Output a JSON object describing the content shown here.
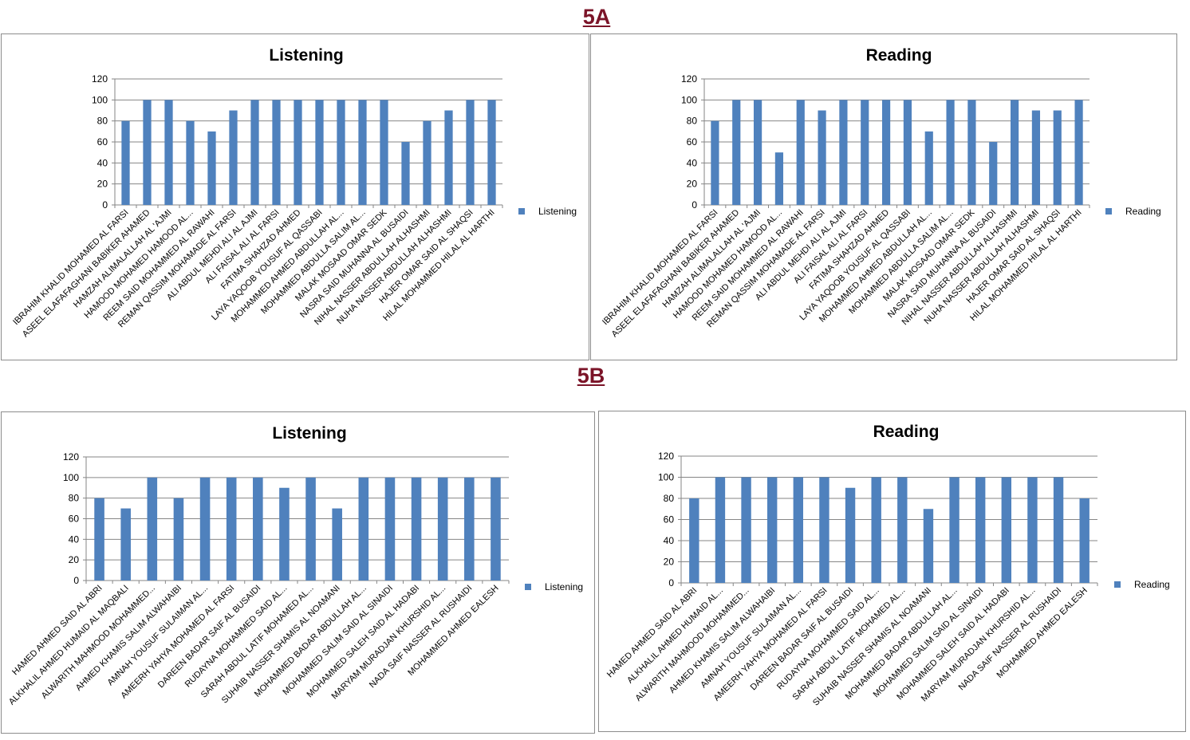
{
  "sections": [
    {
      "title": "5A"
    },
    {
      "title": "5B"
    }
  ],
  "colors": {
    "bar": "#4f81bd",
    "grid": "#868686",
    "section_title": "#7b1428"
  },
  "chart_data": [
    {
      "type": "bar",
      "title": "Listening",
      "section": "5A",
      "legend": "right",
      "grid": true,
      "ylim": [
        0,
        120
      ],
      "yticks": [
        0,
        20,
        40,
        60,
        80,
        100,
        120
      ],
      "categories": [
        "IBRAHIM KHALID MOHAMED AL FARSI",
        "ASEEL ELAFAFAGHANI BABIKER AHAMED",
        "HAMZAH ALIMALALLAH AL 'AJMI",
        "HAMOOD MOHAMED HAMOOD AL...",
        "REEM SAID MOHAMMED AL RAWAHI",
        "REMAN QASSIM MOHAMADE AL FARSI",
        "ALI ABDUL MEHDI ALI AL AJMI",
        "ALI FAISAL ALI AL FARSI",
        "FATIMA SHAHZAD AHMED",
        "LAYA YAQOOB YOUSUF AL QASSABI",
        "MOHAMMED AHMED ABDULLAH AL...",
        "MOHAMMED ABDULLA SALIM AL...",
        "MALAK MOSAAD OMAR SEDK",
        "NASRA SAID MUHANNA AL BUSAIDI",
        "NIHAL NASSER ABDULLAH ALHASHMI",
        "NUHA NASSER ABDULLAH ALHASHMI",
        "HAJER OMAR SAID AL SHAQSI",
        "HILAL MOHAMMED HILAL AL HARTHI"
      ],
      "series": [
        {
          "name": "Listening",
          "values": [
            80,
            100,
            100,
            80,
            70,
            90,
            100,
            100,
            100,
            100,
            100,
            100,
            100,
            60,
            80,
            90,
            100,
            100
          ]
        }
      ]
    },
    {
      "type": "bar",
      "title": "Reading",
      "section": "5A",
      "legend": "right",
      "grid": true,
      "ylim": [
        0,
        120
      ],
      "yticks": [
        0,
        20,
        40,
        60,
        80,
        100,
        120
      ],
      "categories": [
        "IBRAHIM KHALID MOHAMED AL FARSI",
        "ASEEL ELAFAFAGHANI BABIKER AHAMED",
        "HAMZAH ALIMALALLAH AL 'AJMI",
        "HAMOOD MOHAMED HAMOOD AL...",
        "REEM SAID MOHAMMED AL RAWAHI",
        "REMAN QASSIM MOHAMADE AL FARSI",
        "ALI ABDUL MEHDI ALI AL AJMI",
        "ALI FAISAL ALI AL FARSI",
        "FATIMA SHAHZAD AHMED",
        "LAYA YAQOOB YOUSUF AL QASSABI",
        "MOHAMMED AHMED ABDULLAH AL...",
        "MOHAMMED ABDULLA SALIM AL...",
        "MALAK MOSAAD OMAR SEDK",
        "NASRA SAID MUHANNA AL BUSAIDI",
        "NIHAL NASSER ABDULLAH ALHASHMI",
        "NUHA NASSER ABDULLAH ALHASHMI",
        "HAJER OMAR SAID AL SHAQSI",
        "HILAL MOHAMMED HILAL AL HARTHI"
      ],
      "series": [
        {
          "name": "Reading",
          "values": [
            80,
            100,
            100,
            50,
            100,
            90,
            100,
            100,
            100,
            100,
            70,
            100,
            100,
            60,
            100,
            90,
            90,
            100
          ]
        }
      ]
    },
    {
      "type": "bar",
      "title": "Listening",
      "section": "5B",
      "legend": "right",
      "grid": true,
      "ylim": [
        0,
        120
      ],
      "yticks": [
        0,
        20,
        40,
        60,
        80,
        100,
        120
      ],
      "categories": [
        "HAMED AHMED SAID AL ABRI",
        "ALKHALIL AHMED HUMAID AL MAQBALI",
        "ALWARITH MAHMOOD MOHAMMED...",
        "AHMED KHAMIS SALIM ALWAHAIBI",
        "AMNAH YOUSUF SULAIMAN AL...",
        "AMEERH YAHYA MOHAMED AL FARSI",
        "DAREEN BADAR SAIF AL BUSAIDI",
        "RUDAYNA MOHAMMED SAID AL...",
        "SARAH ABDUL LATIF MOHAMED AL...",
        "SUHAIB NASSER SHAMIS AL NOAMANI",
        "MOHAMMED BADAR ABDULLAH AL...",
        "MOHAMMED SALIM SAID AL SINAIDI",
        "MOHAMMED SALEH SAID AL HADABI",
        "MARYAM MURADJAN KHURSHID AL...",
        "NADA SAIF NASSER AL RUSHAIDI",
        "MOHAMMED AHMED EALESH"
      ],
      "series": [
        {
          "name": "Listening",
          "values": [
            80,
            70,
            100,
            80,
            100,
            100,
            100,
            90,
            100,
            70,
            100,
            100,
            100,
            100,
            100,
            100
          ]
        }
      ]
    },
    {
      "type": "bar",
      "title": "Reading",
      "section": "5B",
      "legend": "right",
      "grid": true,
      "ylim": [
        0,
        120
      ],
      "yticks": [
        0,
        20,
        40,
        60,
        80,
        100,
        120
      ],
      "categories": [
        "HAMED AHMED SAID AL ABRI",
        "ALKHALIL AHMED HUMAID AL...",
        "ALWARITH MAHMOOD MOHAMMED...",
        "AHMED KHAMIS SALIM ALWAHAIBI",
        "AMNAH YOUSUF SULAIMAN AL...",
        "AMEERH YAHYA MOHAMED AL FARSI",
        "DAREEN BADAR SAIF AL BUSAIDI",
        "RUDAYNA MOHAMMED SAID AL...",
        "SARAH ABDUL LATIF MOHAMED AL...",
        "SUHAIB NASSER SHAMIS AL NOAMANI",
        "MOHAMMED BADAR ABDULLAH AL...",
        "MOHAMMED SALIM SAID AL SINAIDI",
        "MOHAMMED SALEH SAID AL HADABI",
        "MARYAM MURADJAN KHURSHID AL...",
        "NADA SAIF NASSER AL RUSHAIDI",
        "MOHAMMED AHMED EALESH"
      ],
      "series": [
        {
          "name": "Reading",
          "values": [
            80,
            100,
            100,
            100,
            100,
            100,
            90,
            100,
            100,
            70,
            100,
            100,
            100,
            100,
            100,
            80
          ]
        }
      ]
    }
  ]
}
